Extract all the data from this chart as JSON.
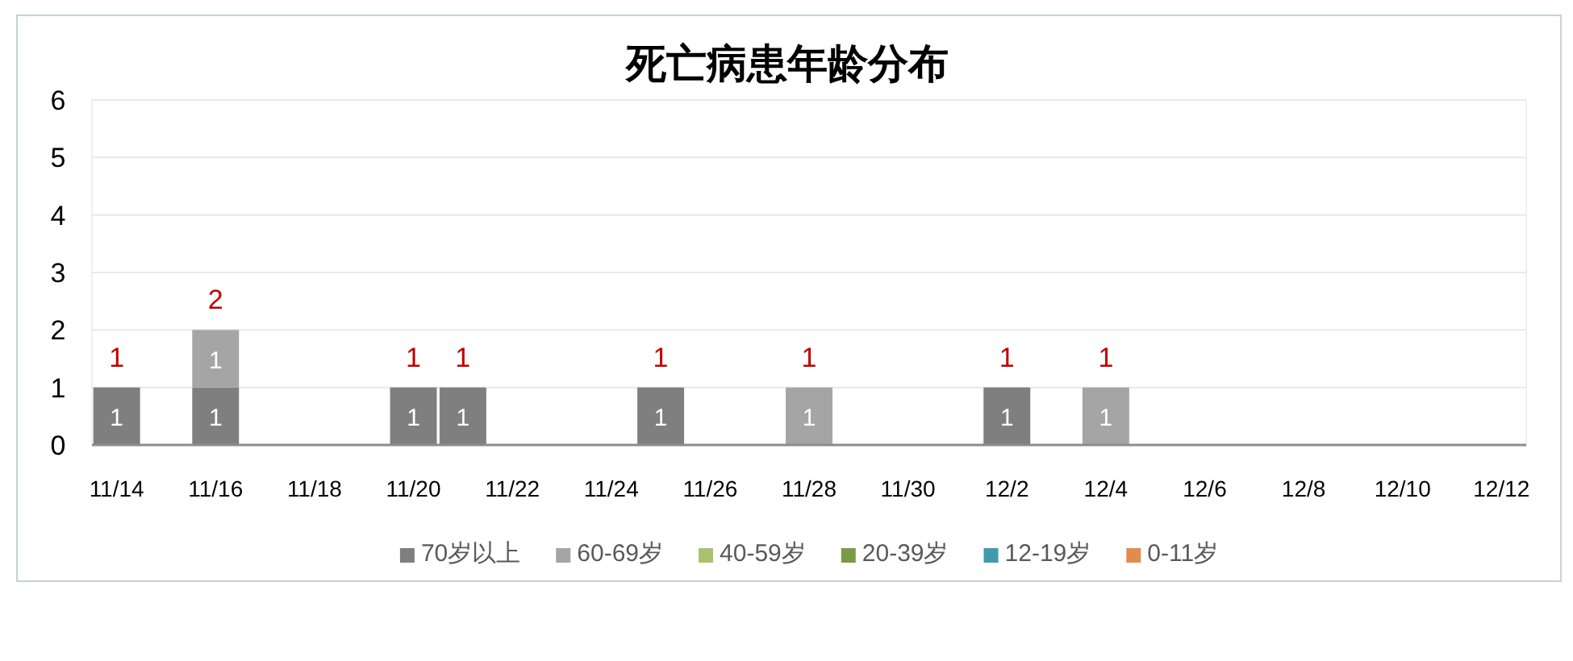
{
  "chart_data": {
    "type": "bar",
    "title": "死亡病患年龄分布",
    "categories": [
      "11/14",
      null,
      "11/16",
      null,
      "11/18",
      null,
      "11/20",
      null,
      "11/22",
      null,
      "11/24",
      null,
      "11/26",
      null,
      "11/28",
      null,
      "11/30",
      null,
      "12/2",
      null,
      "12/4",
      null,
      "12/6",
      null,
      "12/8",
      null,
      "12/10",
      null,
      "12/12"
    ],
    "stacked": true,
    "series": [
      {
        "name": "70岁以上",
        "color": "#7f7f7f",
        "values": [
          1,
          null,
          1,
          null,
          null,
          null,
          1,
          1,
          null,
          null,
          null,
          1,
          null,
          null,
          null,
          null,
          null,
          null,
          1,
          null,
          null,
          null,
          null,
          null,
          null,
          null,
          null,
          null,
          null
        ]
      },
      {
        "name": "60-69岁",
        "color": "#a5a5a5",
        "values": [
          null,
          null,
          1,
          null,
          null,
          null,
          null,
          null,
          null,
          null,
          null,
          null,
          null,
          null,
          1,
          null,
          null,
          null,
          null,
          null,
          1,
          null,
          null,
          null,
          null,
          null,
          null,
          null,
          null
        ]
      },
      {
        "name": "40-59岁",
        "color": "#a9c26c",
        "values": [
          null,
          null,
          null,
          null,
          null,
          null,
          null,
          null,
          null,
          null,
          null,
          null,
          null,
          null,
          null,
          null,
          null,
          null,
          null,
          null,
          null,
          null,
          null,
          null,
          null,
          null,
          null,
          null,
          null
        ]
      },
      {
        "name": "20-39岁",
        "color": "#7b9a48",
        "values": [
          null,
          null,
          null,
          null,
          null,
          null,
          null,
          null,
          null,
          null,
          null,
          null,
          null,
          null,
          null,
          null,
          null,
          null,
          null,
          null,
          null,
          null,
          null,
          null,
          null,
          null,
          null,
          null,
          null
        ]
      },
      {
        "name": "12-19岁",
        "color": "#3f9aad",
        "values": [
          null,
          null,
          null,
          null,
          null,
          null,
          null,
          null,
          null,
          null,
          null,
          null,
          null,
          null,
          null,
          null,
          null,
          null,
          null,
          null,
          null,
          null,
          null,
          null,
          null,
          null,
          null,
          null,
          null
        ]
      },
      {
        "name": "0-11岁",
        "color": "#e08d4b",
        "values": [
          null,
          null,
          null,
          null,
          null,
          null,
          null,
          null,
          null,
          null,
          null,
          null,
          null,
          null,
          null,
          null,
          null,
          null,
          null,
          null,
          null,
          null,
          null,
          null,
          null,
          null,
          null,
          null,
          null
        ]
      }
    ],
    "totals": [
      "1",
      null,
      "2",
      null,
      null,
      null,
      "1",
      "1",
      null,
      null,
      null,
      "1",
      null,
      null,
      "1",
      null,
      null,
      null,
      "1",
      null,
      "1",
      null,
      null,
      null,
      null,
      null,
      null,
      null,
      null
    ],
    "data_labels": true,
    "ylim": [
      0,
      6
    ],
    "yticks": [
      0,
      1,
      2,
      3,
      4,
      5,
      6
    ],
    "grid": "y",
    "legend": "bottom"
  }
}
